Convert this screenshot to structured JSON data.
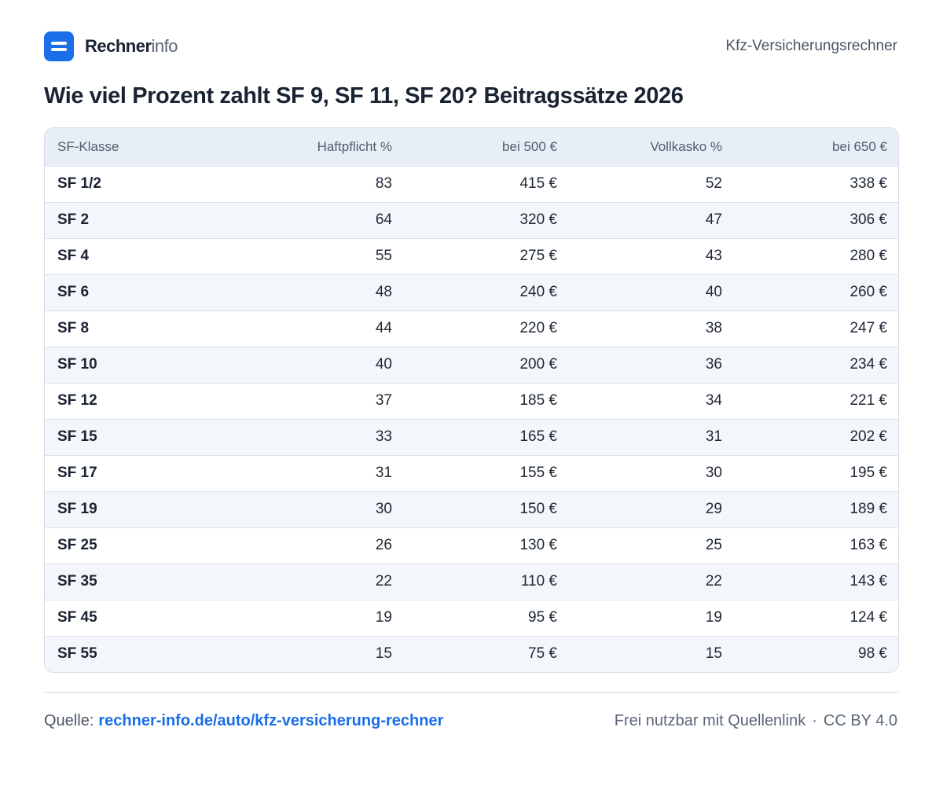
{
  "brand": {
    "name_bold": "Rechner",
    "name_light": "info",
    "icon": "menu-lines-icon"
  },
  "header": {
    "right_label": "Kfz-Versicherungsrechner"
  },
  "title": "Wie viel Prozent zahlt SF 9, SF 11, SF 20? Beitragssätze 2026",
  "table": {
    "columns": [
      "SF-Klasse",
      "Haftpflicht %",
      "bei 500 €",
      "Vollkasko %",
      "bei 650 €"
    ],
    "rows": [
      [
        "SF 1/2",
        "83",
        "415 €",
        "52",
        "338 €"
      ],
      [
        "SF 2",
        "64",
        "320 €",
        "47",
        "306 €"
      ],
      [
        "SF 4",
        "55",
        "275 €",
        "43",
        "280 €"
      ],
      [
        "SF 6",
        "48",
        "240 €",
        "40",
        "260 €"
      ],
      [
        "SF 8",
        "44",
        "220 €",
        "38",
        "247 €"
      ],
      [
        "SF 10",
        "40",
        "200 €",
        "36",
        "234 €"
      ],
      [
        "SF 12",
        "37",
        "185 €",
        "34",
        "221 €"
      ],
      [
        "SF 15",
        "33",
        "165 €",
        "31",
        "202 €"
      ],
      [
        "SF 17",
        "31",
        "155 €",
        "30",
        "195 €"
      ],
      [
        "SF 19",
        "30",
        "150 €",
        "29",
        "189 €"
      ],
      [
        "SF 25",
        "26",
        "130 €",
        "25",
        "163 €"
      ],
      [
        "SF 35",
        "22",
        "110 €",
        "22",
        "143 €"
      ],
      [
        "SF 45",
        "19",
        "95 €",
        "19",
        "124 €"
      ],
      [
        "SF 55",
        "15",
        "75 €",
        "15",
        "98 €"
      ]
    ]
  },
  "footer": {
    "source_label": "Quelle:",
    "source_link": "rechner-info.de/auto/kfz-versicherung-rechner",
    "license_text": "Frei nutzbar mit Quellenlink",
    "separator": "·",
    "license": "CC BY 4.0"
  },
  "colors": {
    "accent": "#1a6ee8",
    "header_bg": "#e8eef6",
    "stripe": "#f3f6fa"
  }
}
